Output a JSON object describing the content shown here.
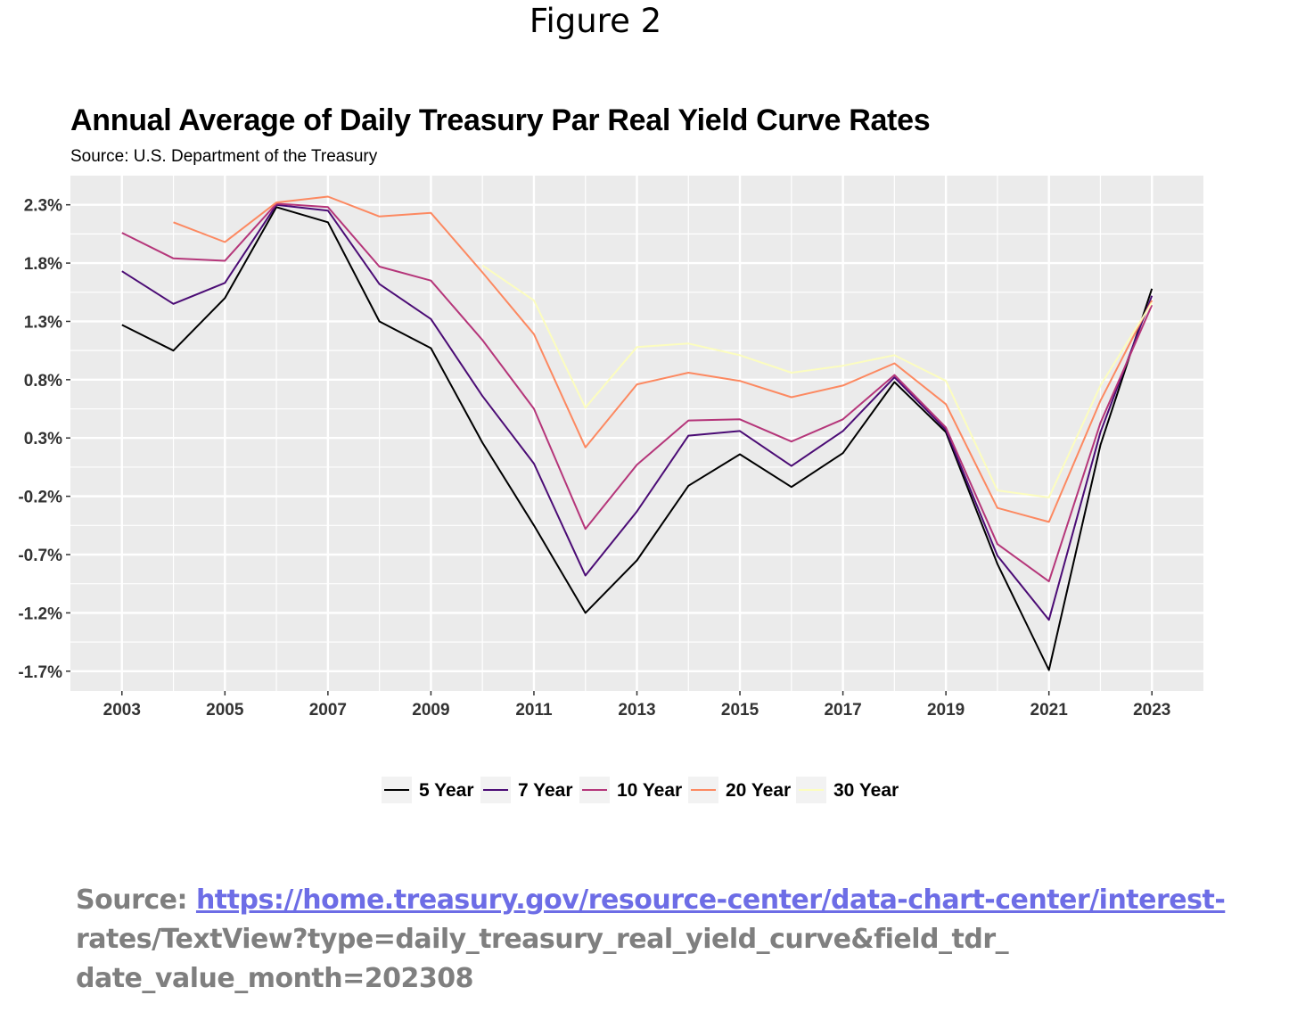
{
  "figure_label": "Figure 2",
  "chart_data": {
    "type": "line",
    "title": "Annual Average of Daily Treasury Par Real Yield Curve Rates",
    "subtitle": "Source: U.S. Department of the Treasury",
    "xlabel": "",
    "ylabel": "",
    "x": [
      2003,
      2004,
      2005,
      2006,
      2007,
      2008,
      2009,
      2010,
      2011,
      2012,
      2013,
      2014,
      2015,
      2016,
      2017,
      2018,
      2019,
      2020,
      2021,
      2022,
      2023
    ],
    "x_ticks": [
      "2003",
      "2005",
      "2007",
      "2009",
      "2011",
      "2013",
      "2015",
      "2017",
      "2019",
      "2021",
      "2023"
    ],
    "y_ticks": [
      "2.3%",
      "1.8%",
      "1.3%",
      "0.8%",
      "0.3%",
      "-0.2%",
      "-0.7%",
      "-1.2%",
      "-1.7%"
    ],
    "ylim": [
      -1.87,
      2.55
    ],
    "xlim": [
      2002,
      2024
    ],
    "grid": true,
    "legend_position": "bottom",
    "series": [
      {
        "name": "5 Year",
        "color": "#000000",
        "values": [
          1.27,
          1.05,
          1.5,
          2.28,
          2.15,
          1.3,
          1.07,
          0.26,
          -0.45,
          -1.2,
          -0.75,
          -0.11,
          0.16,
          -0.12,
          0.17,
          0.78,
          0.35,
          -0.78,
          -1.69,
          0.24,
          1.58
        ]
      },
      {
        "name": "7 Year",
        "color": "#4b0c75",
        "values": [
          1.73,
          1.45,
          1.63,
          2.3,
          2.25,
          1.62,
          1.32,
          0.66,
          0.08,
          -0.88,
          -0.33,
          0.32,
          0.36,
          0.06,
          0.36,
          0.82,
          0.37,
          -0.71,
          -1.26,
          0.35,
          1.52
        ]
      },
      {
        "name": "10 Year",
        "color": "#b5367a",
        "values": [
          2.06,
          1.84,
          1.82,
          2.31,
          2.28,
          1.77,
          1.65,
          1.14,
          0.55,
          -0.48,
          0.07,
          0.45,
          0.46,
          0.27,
          0.46,
          0.84,
          0.39,
          -0.61,
          -0.93,
          0.43,
          1.44
        ]
      },
      {
        "name": "20 Year",
        "color": "#fc8961",
        "values": [
          null,
          2.15,
          1.98,
          2.32,
          2.37,
          2.2,
          2.23,
          1.72,
          1.19,
          0.22,
          0.76,
          0.86,
          0.79,
          0.65,
          0.75,
          0.94,
          0.59,
          -0.3,
          -0.42,
          0.62,
          1.48
        ]
      },
      {
        "name": "30 Year",
        "color": "#fcfdbf",
        "values": [
          null,
          null,
          null,
          null,
          null,
          null,
          null,
          1.78,
          1.48,
          0.56,
          1.08,
          1.11,
          1.01,
          0.86,
          0.92,
          1.01,
          0.79,
          -0.15,
          -0.21,
          0.75,
          1.46
        ]
      }
    ]
  },
  "source_note": {
    "label": "Source: ",
    "link_text": "https://home.treasury.gov/resource-center/data-chart-center/interest-",
    "rest_text": "rates/TextView?type=daily_treasury_real_yield_curve&field_tdr_ date_value_month=202308"
  }
}
